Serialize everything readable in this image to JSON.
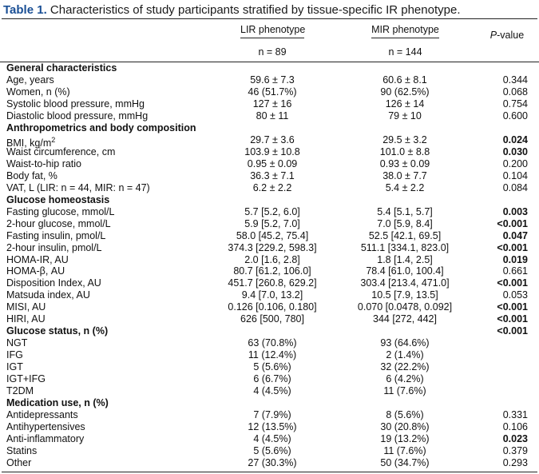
{
  "caption": {
    "label": "Table 1.",
    "text": "Characteristics of study participants stratified by tissue-specific IR phenotype."
  },
  "headers": {
    "lir": "LIR phenotype",
    "mir": "MIR phenotype",
    "pvalue_italic": "P",
    "pvalue_rest": "-value",
    "n_lir": "n = 89",
    "n_mir": "n = 144"
  },
  "rows": [
    {
      "label": "General characteristics",
      "section": true,
      "hline": true
    },
    {
      "label": "Age, years",
      "lir": "59.6 ± 7.3",
      "mir": "60.6 ± 8.1",
      "p": "0.344"
    },
    {
      "label": "Women, n (%)",
      "lir": "46 (51.7%)",
      "mir": "90 (62.5%)",
      "p": "0.068"
    },
    {
      "label": "Systolic blood pressure, mmHg",
      "lir": "127 ± 16",
      "mir": "126 ± 14",
      "p": "0.754"
    },
    {
      "label": "Diastolic blood pressure, mmHg",
      "lir": "80 ± 11",
      "mir": "79 ± 10",
      "p": "0.600"
    },
    {
      "label": "Anthropometrics and body composition",
      "section": true
    },
    {
      "label": "BMI, kg/m",
      "sup": "2",
      "lir": "29.7 ± 3.6",
      "mir": "29.5 ± 3.2",
      "p": "0.024",
      "bold": true
    },
    {
      "label": "Waist circumference, cm",
      "lir": "103.9 ± 10.8",
      "mir": "101.0 ± 8.8",
      "p": "0.030",
      "bold": true
    },
    {
      "label": "Waist-to-hip ratio",
      "lir": "0.95 ± 0.09",
      "mir": "0.93 ± 0.09",
      "p": "0.200"
    },
    {
      "label": "Body fat, %",
      "lir": "36.3 ± 7.1",
      "mir": "38.0 ± 7.7",
      "p": "0.104"
    },
    {
      "label": "VAT, L (LIR: n = 44, MIR: n = 47)",
      "lir": "6.2 ± 2.2",
      "mir": "5.4 ± 2.2",
      "p": "0.084"
    },
    {
      "label": "Glucose homeostasis",
      "section": true
    },
    {
      "label": "Fasting glucose, mmol/L",
      "lir": "5.7 [5.2, 6.0]",
      "mir": "5.4 [5.1, 5.7]",
      "p": "0.003",
      "bold": true
    },
    {
      "label": "2-hour glucose, mmol/L",
      "lir": "5.9 [5.2, 7.0]",
      "mir": "7.0 [5.9, 8.4]",
      "p": "<0.001",
      "bold": true
    },
    {
      "label": "Fasting insulin, pmol/L",
      "lir": "58.0 [45.2, 75.4]",
      "mir": "52.5 [42.1, 69.5]",
      "p": "0.047",
      "bold": true
    },
    {
      "label": "2-hour insulin, pmol/L",
      "lir": "374.3 [229.2, 598.3]",
      "mir": "511.1 [334.1, 823.0]",
      "p": "<0.001",
      "bold": true
    },
    {
      "label": "HOMA-IR, AU",
      "lir": "2.0 [1.6, 2.8]",
      "mir": "1.8 [1.4, 2.5]",
      "p": "0.019",
      "bold": true
    },
    {
      "label": "HOMA-β, AU",
      "lir": "80.7 [61.2, 106.0]",
      "mir": "78.4 [61.0, 100.4]",
      "p": "0.661"
    },
    {
      "label": "Disposition Index, AU",
      "lir": "451.7 [260.8, 629.2]",
      "mir": "303.4 [213.4, 471.0]",
      "p": "<0.001",
      "bold": true
    },
    {
      "label": "Matsuda index, AU",
      "lir": "9.4 [7.0, 13.2]",
      "mir": "10.5 [7.9, 13.5]",
      "p": "0.053"
    },
    {
      "label": "MISI, AU",
      "lir": "0.126 [0.106, 0.180]",
      "mir": "0.070 [0.0478, 0.092]",
      "p": "<0.001",
      "bold": true
    },
    {
      "label": "HIRI, AU",
      "lir": "626 [500, 780]",
      "mir": "344 [272, 442]",
      "p": "<0.001",
      "bold": true
    },
    {
      "label": "Glucose status, n (%)",
      "section": true,
      "p": "<0.001",
      "bold": true
    },
    {
      "label": "NGT",
      "lir": "63 (70.8%)",
      "mir": "93 (64.6%)"
    },
    {
      "label": "IFG",
      "lir": "11 (12.4%)",
      "mir": "2 (1.4%)"
    },
    {
      "label": "IGT",
      "lir": "5 (5.6%)",
      "mir": "32 (22.2%)"
    },
    {
      "label": "IGT+IFG",
      "lir": "6 (6.7%)",
      "mir": "6 (4.2%)"
    },
    {
      "label": "T2DM",
      "lir": "4 (4.5%)",
      "mir": "11 (7.6%)"
    },
    {
      "label": "Medication use, n (%)",
      "section": true
    },
    {
      "label": "Antidepressants",
      "lir": "7 (7.9%)",
      "mir": "8 (5.6%)",
      "p": "0.331"
    },
    {
      "label": "Antihypertensives",
      "lir": "12 (13.5%)",
      "mir": "30 (20.8%)",
      "p": "0.106"
    },
    {
      "label": "Anti-inflammatory",
      "lir": "4 (4.5%)",
      "mir": "19 (13.2%)",
      "p": "0.023",
      "bold": true
    },
    {
      "label": "Statins",
      "lir": "5 (5.6%)",
      "mir": "11 (7.6%)",
      "p": "0.379"
    },
    {
      "label": "Other",
      "lir": "27 (30.3%)",
      "mir": "50 (34.7%)",
      "p": "0.293"
    }
  ]
}
